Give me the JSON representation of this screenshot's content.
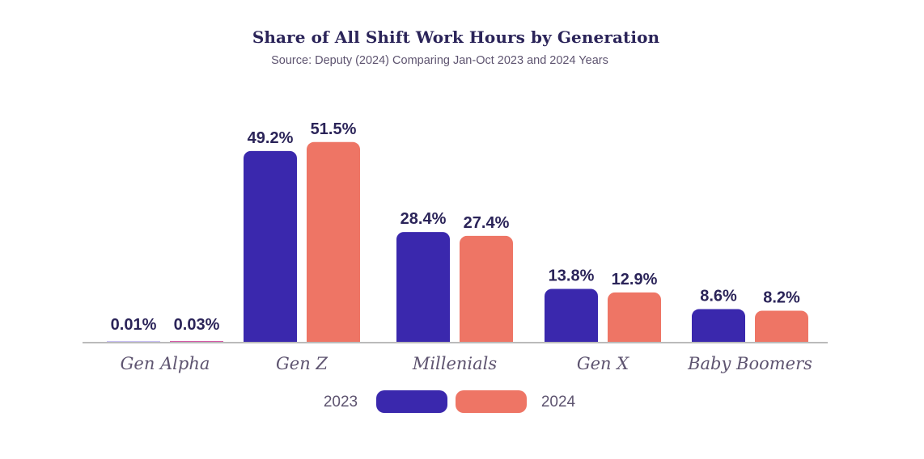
{
  "chart_data": {
    "type": "bar",
    "title": "Share of All Shift Work Hours by Generation",
    "subtitle": "Source: Deputy (2024) Comparing Jan-Oct 2023 and 2024 Years",
    "xlabel": "",
    "ylabel": "",
    "ylim": [
      0,
      60
    ],
    "grid": false,
    "categories": [
      "Gen Alpha",
      "Gen Z",
      "Millenials",
      "Gen X",
      "Baby Boomers"
    ],
    "series": [
      {
        "name": "2023",
        "color": "#3a28ad",
        "values": [
          0.01,
          49.2,
          28.4,
          13.8,
          8.6
        ],
        "labels": [
          "0.01%",
          "49.2%",
          "28.4%",
          "13.8%",
          "8.6%"
        ]
      },
      {
        "name": "2024",
        "color": "#ee7565",
        "values": [
          0.03,
          51.5,
          27.4,
          12.9,
          8.2
        ],
        "labels": [
          "0.03%",
          "51.5%",
          "27.4%",
          "12.9%",
          "8.2%"
        ]
      }
    ],
    "tiny_bar_colors": {
      "2023": "#c9c0f5",
      "2024": "#d45aa6"
    },
    "legend": {
      "position": "bottom-center",
      "items": [
        {
          "label": "2023",
          "color": "#3a28ad"
        },
        {
          "label": "2024",
          "color": "#ee7565"
        }
      ]
    },
    "baseline_color": "#bbbbbb"
  }
}
